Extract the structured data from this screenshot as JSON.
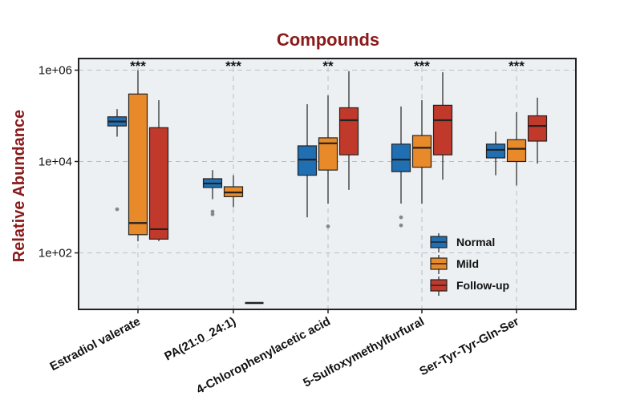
{
  "chart_data": {
    "type": "box",
    "title": "Compounds",
    "xlabel": "",
    "ylabel": "Relative Abundance",
    "yscale": "log",
    "ylim": [
      10,
      1000000
    ],
    "yticks": [
      "1e+02",
      "1e+04",
      "1e+06"
    ],
    "grid": true,
    "legend_position": "bottom-right",
    "categories": [
      "Estradiol valerate",
      "PA(21:0_24:1)",
      "4-Chlorophenylacetic acid",
      "5-Sulfoxymethylfurfural",
      "Ser-Tyr-Tyr-Gln-Ser"
    ],
    "significance": [
      "***",
      "***",
      "**",
      "***",
      "***"
    ],
    "series": [
      {
        "name": "Normal",
        "color": "#1f6fb2",
        "boxes": [
          {
            "min": 35000,
            "q1": 60000,
            "median": 75000,
            "q3": 95000,
            "max": 140000,
            "outliers": [
              900
            ]
          },
          {
            "min": 1500,
            "q1": 2700,
            "median": 3300,
            "q3": 4200,
            "max": 6500,
            "outliers": [
              800,
              700
            ]
          },
          {
            "min": 600,
            "q1": 5000,
            "median": 11000,
            "q3": 22000,
            "max": 180000,
            "outliers": []
          },
          {
            "min": 1200,
            "q1": 6000,
            "median": 11000,
            "q3": 24000,
            "max": 160000,
            "outliers": [
              600,
              400
            ]
          },
          {
            "min": 5000,
            "q1": 12000,
            "median": 18000,
            "q3": 24000,
            "max": 45000,
            "outliers": []
          }
        ]
      },
      {
        "name": "Mild",
        "color": "#e8892a",
        "boxes": [
          {
            "min": 180,
            "q1": 250,
            "median": 450,
            "q3": 300000,
            "max": 1000000,
            "outliers": []
          },
          {
            "min": 1000,
            "q1": 1700,
            "median": 2100,
            "q3": 2800,
            "max": 5000,
            "outliers": []
          },
          {
            "min": 1200,
            "q1": 6500,
            "median": 25000,
            "q3": 33000,
            "max": 280000,
            "outliers": [
              380
            ]
          },
          {
            "min": 1200,
            "q1": 7500,
            "median": 20000,
            "q3": 37000,
            "max": 220000,
            "outliers": []
          },
          {
            "min": 3000,
            "q1": 10000,
            "median": 19000,
            "q3": 30000,
            "max": 120000,
            "outliers": []
          }
        ]
      },
      {
        "name": "Follow-up",
        "color": "#c0392b",
        "boxes": [
          {
            "min": 180,
            "q1": 200,
            "median": 330,
            "q3": 55000,
            "max": 220000,
            "outliers": []
          },
          {
            "min": 8,
            "q1": 8,
            "median": 8,
            "q3": 8,
            "max": 8,
            "outliers": []
          },
          {
            "min": 2400,
            "q1": 14000,
            "median": 80000,
            "q3": 150000,
            "max": 950000,
            "outliers": []
          },
          {
            "min": 4000,
            "q1": 14000,
            "median": 80000,
            "q3": 170000,
            "max": 900000,
            "outliers": []
          },
          {
            "min": 9000,
            "q1": 28000,
            "median": 60000,
            "q3": 100000,
            "max": 250000,
            "outliers": []
          }
        ]
      }
    ]
  }
}
